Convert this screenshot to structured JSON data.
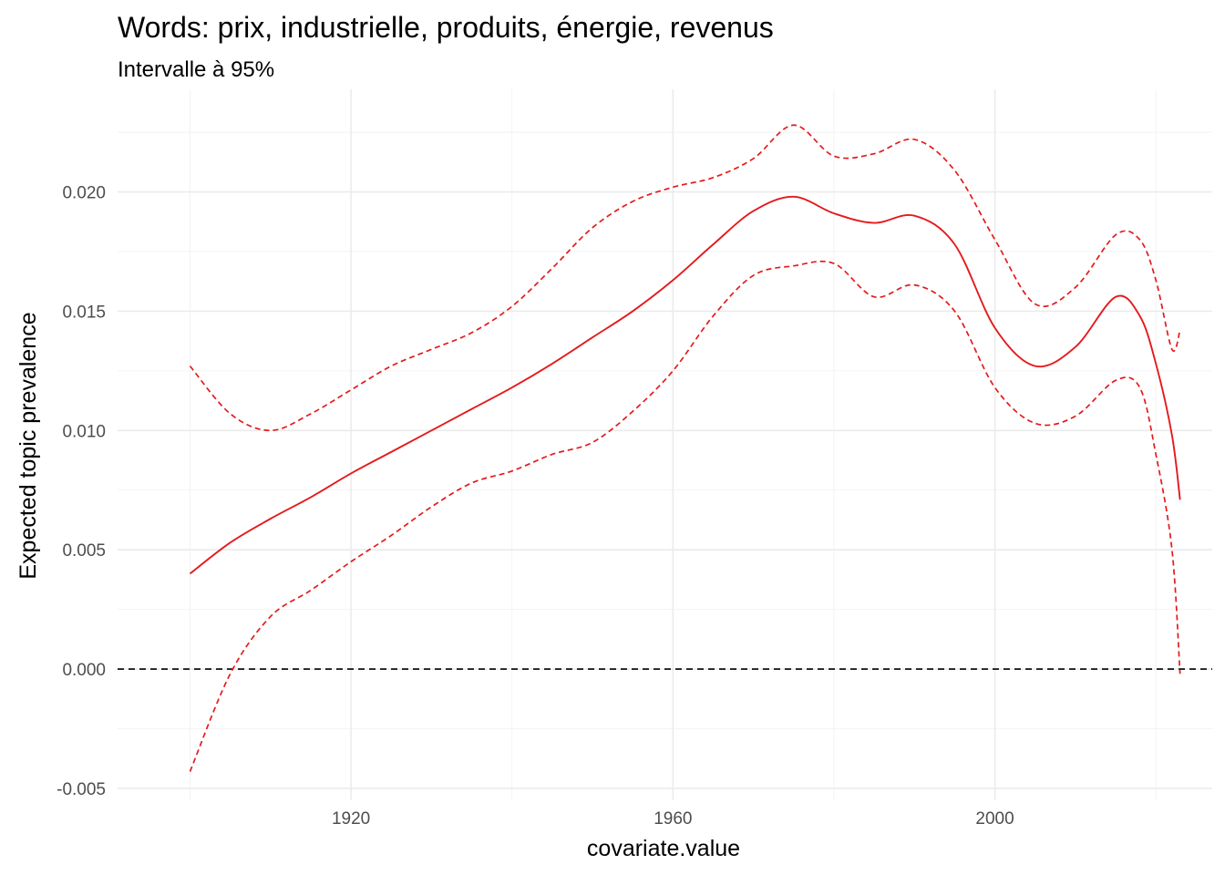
{
  "chart_data": {
    "type": "line",
    "title": "Words: prix, industrielle, produits, énergie, revenus",
    "subtitle": "Intervalle à 95%",
    "xlabel": "covariate.value",
    "ylabel": "Expected topic prevalence",
    "xlim": [
      1891,
      2027
    ],
    "ylim": [
      -0.0055,
      0.0243
    ],
    "x_ticks": [
      1920,
      1960,
      2000
    ],
    "x_tick_labels": [
      "1920",
      "1960",
      "2000"
    ],
    "y_ticks": [
      -0.005,
      0.0,
      0.005,
      0.01,
      0.015,
      0.02
    ],
    "y_tick_labels": [
      "-0.005",
      "0.000",
      "0.005",
      "0.010",
      "0.015",
      "0.020"
    ],
    "grid": true,
    "reference_line": 0,
    "colors": {
      "estimate": "#e41a1c",
      "ci": "#e41a1c",
      "reference": "#000000"
    },
    "x": [
      1900,
      1905,
      1910,
      1915,
      1920,
      1925,
      1930,
      1935,
      1940,
      1945,
      1950,
      1955,
      1960,
      1965,
      1970,
      1975,
      1980,
      1985,
      1990,
      1995,
      2000,
      2005,
      2010,
      2015,
      2018,
      2020,
      2022,
      2023
    ],
    "series": [
      {
        "role": "estimate",
        "style": "solid",
        "values": [
          0.004,
          0.0053,
          0.0063,
          0.0072,
          0.0082,
          0.0091,
          0.01,
          0.0109,
          0.0118,
          0.0128,
          0.0139,
          0.015,
          0.0163,
          0.0178,
          0.0192,
          0.0198,
          0.0191,
          0.0187,
          0.019,
          0.0178,
          0.0143,
          0.0127,
          0.0135,
          0.0156,
          0.0148,
          0.0128,
          0.0098,
          0.0071
        ]
      },
      {
        "role": "upper",
        "style": "dashed",
        "values": [
          0.0127,
          0.0107,
          0.01,
          0.0107,
          0.0117,
          0.0127,
          0.0134,
          0.0141,
          0.0152,
          0.0168,
          0.0185,
          0.0196,
          0.0202,
          0.0206,
          0.0214,
          0.0228,
          0.0215,
          0.0216,
          0.0222,
          0.0209,
          0.018,
          0.0153,
          0.016,
          0.0182,
          0.018,
          0.0163,
          0.0134,
          0.0142
        ]
      },
      {
        "role": "lower",
        "style": "dashed",
        "values": [
          -0.0043,
          -0.0002,
          0.0022,
          0.0033,
          0.0045,
          0.0056,
          0.0068,
          0.0078,
          0.0083,
          0.009,
          0.0095,
          0.0108,
          0.0125,
          0.0148,
          0.0165,
          0.0169,
          0.017,
          0.0156,
          0.0161,
          0.015,
          0.0118,
          0.0103,
          0.0106,
          0.0121,
          0.0118,
          0.009,
          0.005,
          -0.0002
        ]
      }
    ]
  }
}
